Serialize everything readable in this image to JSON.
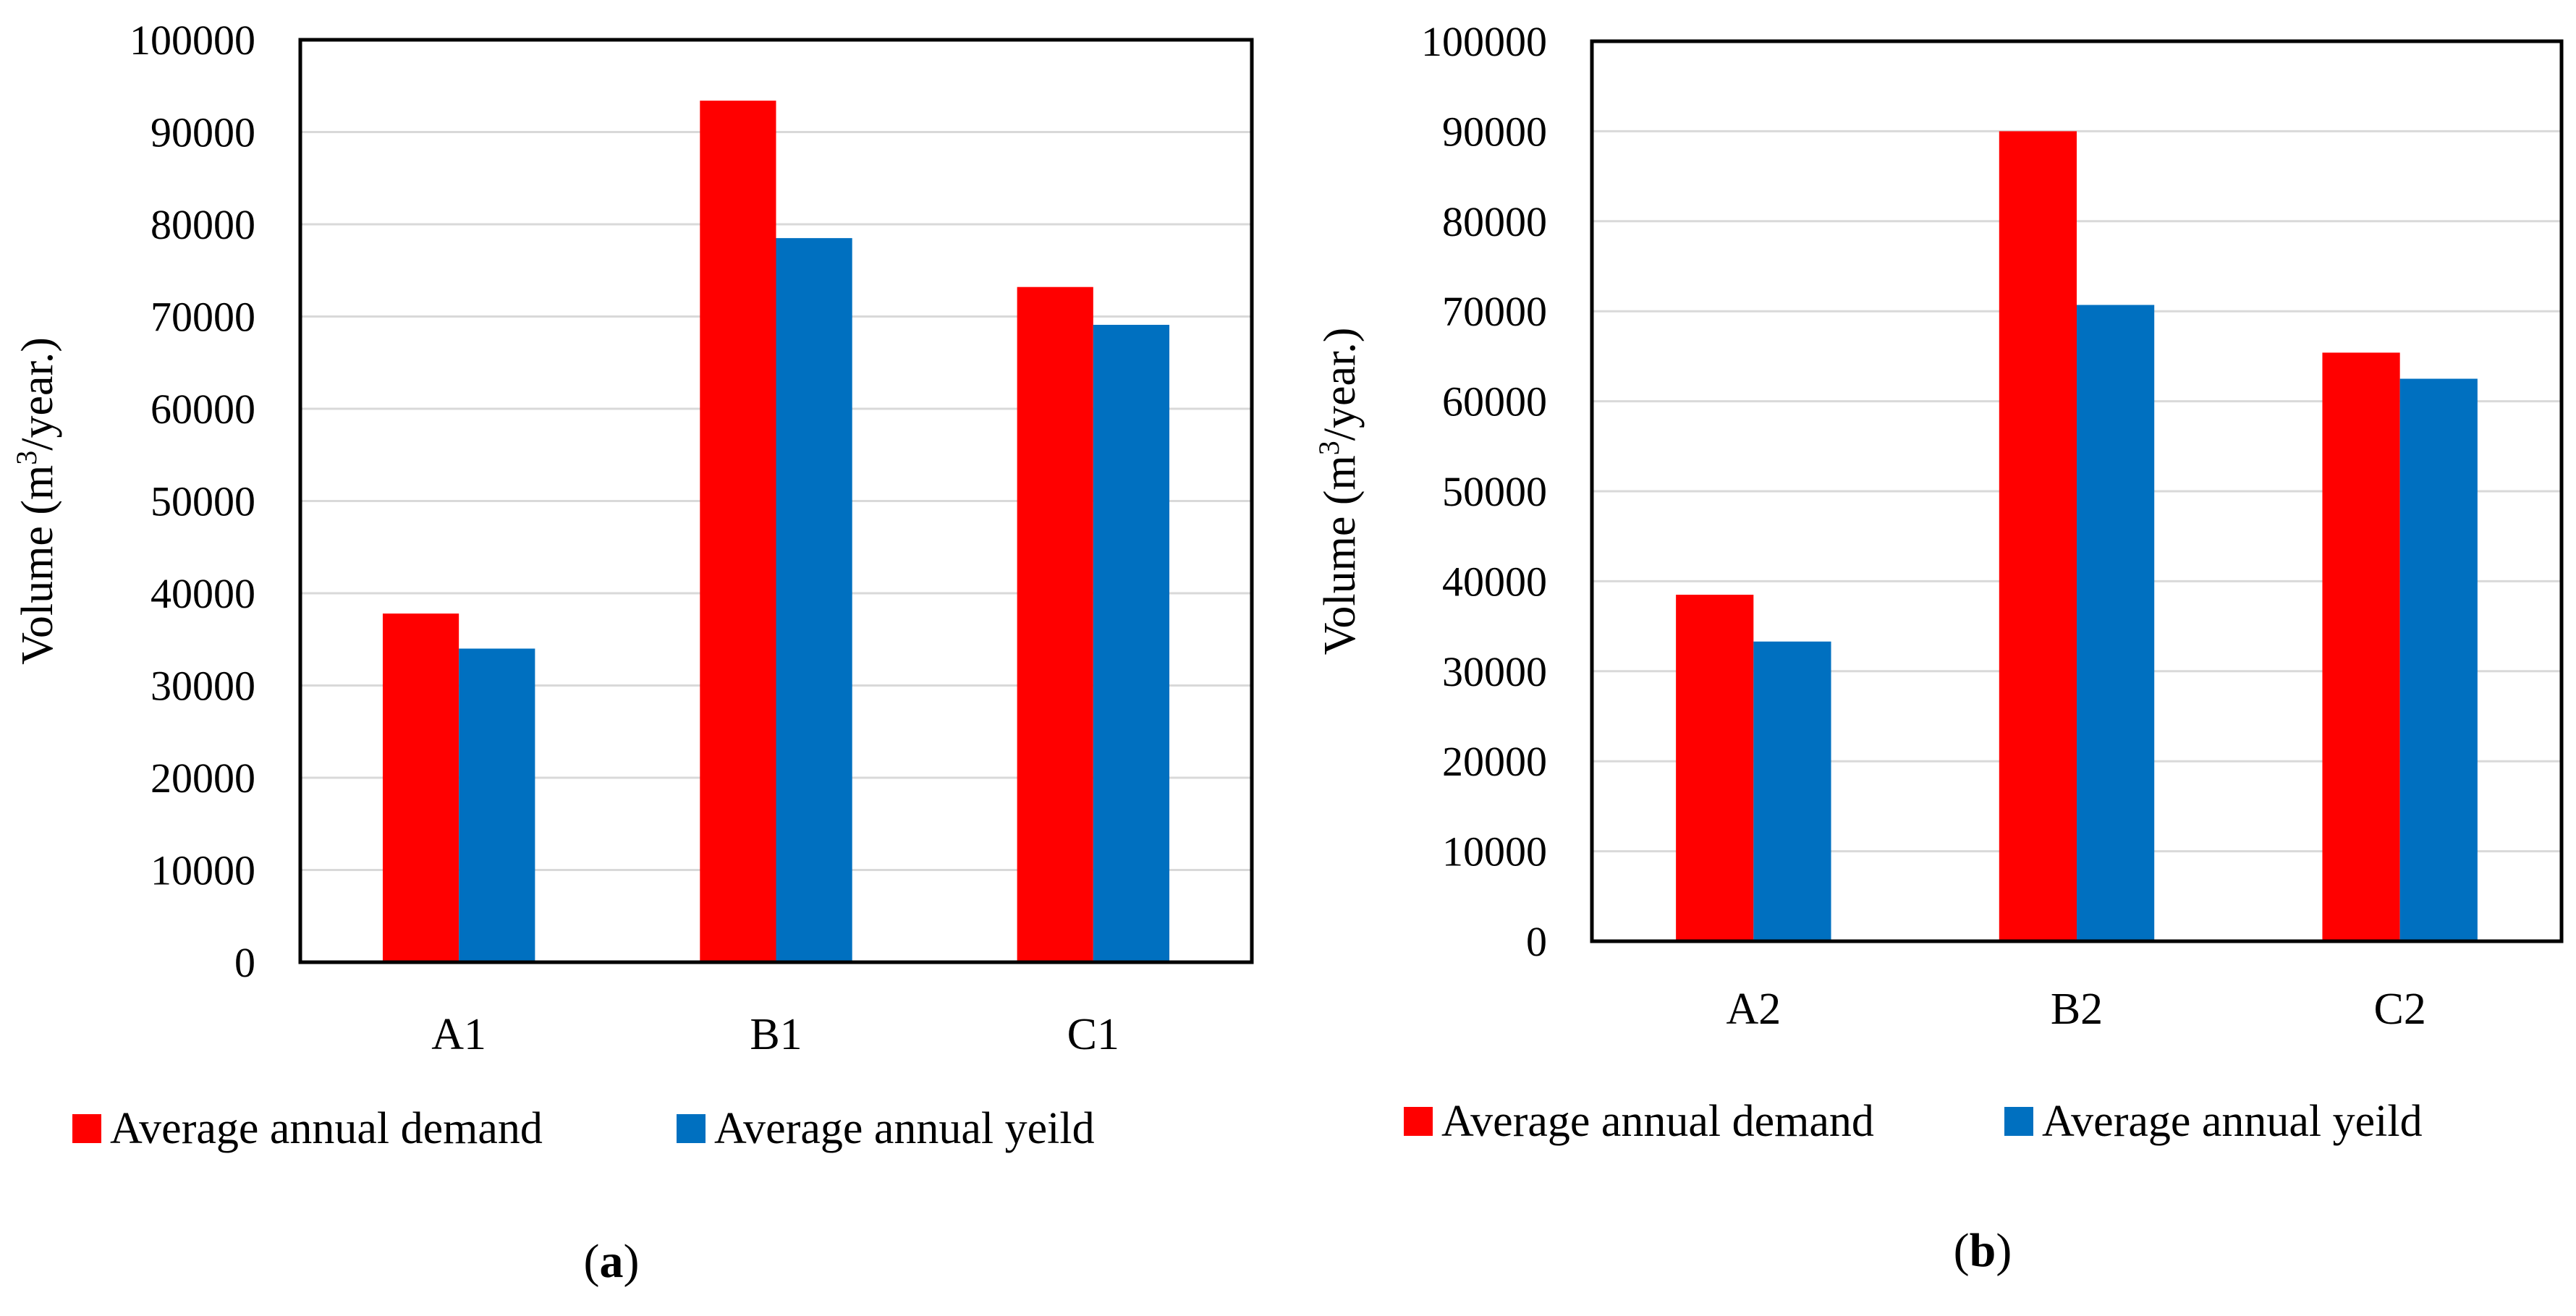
{
  "chart_data": [
    {
      "type": "bar",
      "panel_label": "a",
      "categories": [
        "A1",
        "B1",
        "C1"
      ],
      "series": [
        {
          "name": "Average annual demand",
          "color": "#ff0000",
          "values": [
            37800,
            93400,
            73200
          ]
        },
        {
          "name": "Average annual yeild",
          "color": "#0070c0",
          "values": [
            34000,
            78500,
            69100
          ]
        }
      ],
      "ylabel": {
        "prefix": "Volume (m",
        "sup": "3",
        "suffix": "/year.)"
      },
      "ylim": [
        0,
        100000
      ],
      "yticks": [
        0,
        10000,
        20000,
        30000,
        40000,
        50000,
        60000,
        70000,
        80000,
        90000,
        100000
      ],
      "grid": true,
      "legend": "bottom"
    },
    {
      "type": "bar",
      "panel_label": "b",
      "categories": [
        "A2",
        "B2",
        "C2"
      ],
      "series": [
        {
          "name": "Average annual demand",
          "color": "#ff0000",
          "values": [
            38500,
            90000,
            65400
          ]
        },
        {
          "name": "Average annual yeild",
          "color": "#0070c0",
          "values": [
            33300,
            70700,
            62500
          ]
        }
      ],
      "ylabel": {
        "prefix": "Volume (m",
        "sup": "3",
        "suffix": "/year.)"
      },
      "ylim": [
        0,
        100000
      ],
      "yticks": [
        0,
        10000,
        20000,
        30000,
        40000,
        50000,
        60000,
        70000,
        80000,
        90000,
        100000
      ],
      "grid": true,
      "legend": "bottom"
    }
  ]
}
